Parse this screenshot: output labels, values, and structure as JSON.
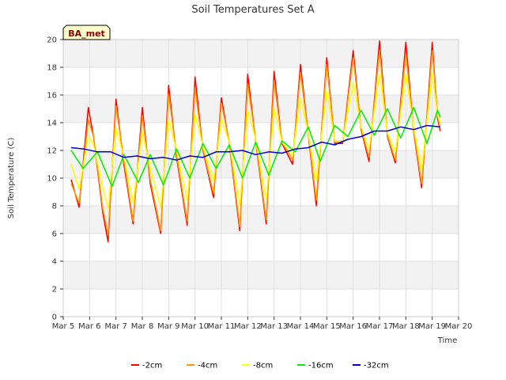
{
  "chart_data": {
    "type": "line",
    "title": "Soil Temperatures Set A",
    "xlabel": "Time",
    "ylabel": "Soil Temperature (C)",
    "station_label": "BA_met",
    "ylim": [
      0,
      20
    ],
    "yticks": [
      0,
      2,
      4,
      6,
      8,
      10,
      12,
      14,
      16,
      18,
      20
    ],
    "xlim": [
      0,
      15
    ],
    "xtick_values": [
      0,
      1,
      2,
      3,
      4,
      5,
      6,
      7,
      8,
      9,
      10,
      11,
      12,
      13,
      14,
      15
    ],
    "xtick_labels": [
      "Mar 5",
      "Mar 6",
      "Mar 7",
      "Mar 8",
      "Mar 9",
      "Mar 10",
      "Mar 11",
      "Mar 12",
      "Mar 13",
      "Mar 14",
      "Mar 15",
      "Mar 16",
      "Mar 17",
      "Mar 18",
      "Mar 19",
      "Mar 20"
    ],
    "grid": true,
    "legend_position": "bottom",
    "band_color": "#f2f2f2",
    "series": [
      {
        "name": "-2cm",
        "color": "#ff0000",
        "points": [
          [
            0.3,
            9.9
          ],
          [
            0.6,
            7.9
          ],
          [
            0.95,
            15.1
          ],
          [
            1.15,
            13.0
          ],
          [
            1.5,
            7.5
          ],
          [
            1.7,
            5.4
          ],
          [
            2.0,
            15.7
          ],
          [
            2.3,
            11.0
          ],
          [
            2.65,
            6.7
          ],
          [
            3.0,
            15.1
          ],
          [
            3.3,
            9.6
          ],
          [
            3.7,
            6.0
          ],
          [
            4.0,
            16.7
          ],
          [
            4.3,
            11.5
          ],
          [
            4.7,
            6.6
          ],
          [
            5.0,
            17.3
          ],
          [
            5.3,
            12.0
          ],
          [
            5.7,
            8.6
          ],
          [
            6.0,
            15.8
          ],
          [
            6.3,
            12.5
          ],
          [
            6.7,
            6.2
          ],
          [
            7.0,
            17.5
          ],
          [
            7.3,
            12.7
          ],
          [
            7.7,
            6.7
          ],
          [
            8.0,
            17.7
          ],
          [
            8.3,
            12.5
          ],
          [
            8.7,
            11.0
          ],
          [
            9.0,
            18.2
          ],
          [
            9.3,
            13.1
          ],
          [
            9.6,
            8.0
          ],
          [
            10.0,
            18.7
          ],
          [
            10.3,
            12.5
          ],
          [
            10.6,
            12.5
          ],
          [
            11.0,
            19.2
          ],
          [
            11.3,
            13.5
          ],
          [
            11.6,
            11.2
          ],
          [
            12.0,
            19.9
          ],
          [
            12.3,
            13.0
          ],
          [
            12.6,
            11.1
          ],
          [
            13.0,
            19.8
          ],
          [
            13.3,
            13.3
          ],
          [
            13.6,
            9.3
          ],
          [
            14.0,
            19.8
          ],
          [
            14.2,
            14.4
          ],
          [
            14.3,
            13.4
          ]
        ]
      },
      {
        "name": "-4cm",
        "color": "#ff9900",
        "points": [
          [
            0.3,
            9.6
          ],
          [
            0.6,
            8.2
          ],
          [
            0.95,
            14.2
          ],
          [
            1.15,
            13.0
          ],
          [
            1.5,
            7.8
          ],
          [
            1.7,
            5.9
          ],
          [
            2.0,
            15.2
          ],
          [
            2.3,
            11.3
          ],
          [
            2.65,
            6.9
          ],
          [
            3.0,
            14.5
          ],
          [
            3.3,
            9.9
          ],
          [
            3.7,
            6.2
          ],
          [
            4.0,
            16.1
          ],
          [
            4.3,
            11.7
          ],
          [
            4.7,
            6.9
          ],
          [
            5.0,
            16.5
          ],
          [
            5.3,
            12.1
          ],
          [
            5.7,
            8.9
          ],
          [
            6.0,
            15.4
          ],
          [
            6.3,
            12.6
          ],
          [
            6.7,
            6.5
          ],
          [
            7.0,
            16.8
          ],
          [
            7.3,
            12.8
          ],
          [
            7.7,
            7.0
          ],
          [
            8.0,
            17.0
          ],
          [
            8.3,
            12.6
          ],
          [
            8.7,
            11.3
          ],
          [
            9.0,
            17.6
          ],
          [
            9.3,
            13.2
          ],
          [
            9.6,
            8.4
          ],
          [
            10.0,
            18.2
          ],
          [
            10.3,
            12.6
          ],
          [
            10.6,
            12.6
          ],
          [
            11.0,
            18.7
          ],
          [
            11.3,
            13.6
          ],
          [
            11.6,
            11.5
          ],
          [
            12.0,
            19.2
          ],
          [
            12.3,
            13.1
          ],
          [
            12.6,
            11.3
          ],
          [
            13.0,
            19.0
          ],
          [
            13.3,
            13.4
          ],
          [
            13.6,
            9.6
          ],
          [
            14.0,
            19.2
          ],
          [
            14.2,
            14.6
          ],
          [
            14.3,
            13.6
          ]
        ]
      },
      {
        "name": "-8cm",
        "color": "#ffff00",
        "points": [
          [
            0.3,
            11.0
          ],
          [
            0.6,
            9.2
          ],
          [
            0.95,
            13.0
          ],
          [
            1.15,
            12.4
          ],
          [
            1.5,
            9.3
          ],
          [
            1.7,
            7.8
          ],
          [
            2.0,
            13.6
          ],
          [
            2.3,
            11.5
          ],
          [
            2.65,
            8.2
          ],
          [
            3.0,
            13.3
          ],
          [
            3.3,
            10.7
          ],
          [
            3.7,
            7.9
          ],
          [
            4.0,
            14.2
          ],
          [
            4.3,
            12.0
          ],
          [
            4.7,
            8.4
          ],
          [
            5.0,
            14.6
          ],
          [
            5.3,
            12.3
          ],
          [
            5.7,
            9.8
          ],
          [
            6.0,
            14.2
          ],
          [
            6.3,
            12.6
          ],
          [
            6.7,
            8.0
          ],
          [
            7.0,
            14.9
          ],
          [
            7.3,
            12.8
          ],
          [
            7.7,
            8.5
          ],
          [
            8.0,
            15.0
          ],
          [
            8.3,
            12.6
          ],
          [
            8.7,
            11.6
          ],
          [
            9.0,
            15.8
          ],
          [
            9.3,
            13.2
          ],
          [
            9.6,
            9.8
          ],
          [
            10.0,
            16.3
          ],
          [
            10.3,
            12.7
          ],
          [
            10.6,
            12.7
          ],
          [
            11.0,
            16.9
          ],
          [
            11.3,
            13.7
          ],
          [
            11.6,
            12.1
          ],
          [
            12.0,
            17.5
          ],
          [
            12.3,
            13.3
          ],
          [
            12.6,
            11.9
          ],
          [
            13.0,
            17.5
          ],
          [
            13.3,
            13.6
          ],
          [
            13.6,
            10.6
          ],
          [
            14.0,
            17.5
          ],
          [
            14.2,
            14.6
          ],
          [
            14.3,
            14.0
          ]
        ]
      },
      {
        "name": "-16cm",
        "color": "#00ee00",
        "points": [
          [
            0.3,
            12.0
          ],
          [
            0.75,
            10.7
          ],
          [
            1.3,
            11.9
          ],
          [
            1.85,
            9.4
          ],
          [
            2.3,
            11.7
          ],
          [
            2.85,
            9.7
          ],
          [
            3.3,
            11.7
          ],
          [
            3.8,
            9.5
          ],
          [
            4.3,
            12.1
          ],
          [
            4.8,
            10.0
          ],
          [
            5.3,
            12.5
          ],
          [
            5.8,
            10.7
          ],
          [
            6.3,
            12.4
          ],
          [
            6.8,
            10.0
          ],
          [
            7.3,
            12.6
          ],
          [
            7.8,
            10.2
          ],
          [
            8.3,
            12.7
          ],
          [
            8.8,
            11.9
          ],
          [
            9.3,
            13.7
          ],
          [
            9.75,
            11.2
          ],
          [
            10.3,
            13.8
          ],
          [
            10.8,
            13.0
          ],
          [
            11.3,
            14.9
          ],
          [
            11.8,
            13.1
          ],
          [
            12.3,
            15.0
          ],
          [
            12.8,
            12.9
          ],
          [
            13.3,
            15.1
          ],
          [
            13.8,
            12.5
          ],
          [
            14.2,
            14.9
          ],
          [
            14.3,
            14.4
          ]
        ]
      },
      {
        "name": "-32cm",
        "color": "#0000cc",
        "points": [
          [
            0.3,
            12.2
          ],
          [
            0.8,
            12.1
          ],
          [
            1.3,
            11.9
          ],
          [
            1.8,
            11.9
          ],
          [
            2.3,
            11.5
          ],
          [
            2.8,
            11.6
          ],
          [
            3.3,
            11.4
          ],
          [
            3.8,
            11.5
          ],
          [
            4.3,
            11.3
          ],
          [
            4.8,
            11.6
          ],
          [
            5.3,
            11.5
          ],
          [
            5.8,
            11.9
          ],
          [
            6.3,
            11.9
          ],
          [
            6.8,
            12.0
          ],
          [
            7.3,
            11.7
          ],
          [
            7.8,
            11.9
          ],
          [
            8.3,
            11.8
          ],
          [
            8.8,
            12.1
          ],
          [
            9.3,
            12.2
          ],
          [
            9.8,
            12.6
          ],
          [
            10.3,
            12.4
          ],
          [
            10.8,
            12.8
          ],
          [
            11.3,
            13.0
          ],
          [
            11.8,
            13.4
          ],
          [
            12.3,
            13.4
          ],
          [
            12.8,
            13.7
          ],
          [
            13.3,
            13.5
          ],
          [
            13.8,
            13.8
          ],
          [
            14.3,
            13.7
          ]
        ]
      }
    ]
  }
}
